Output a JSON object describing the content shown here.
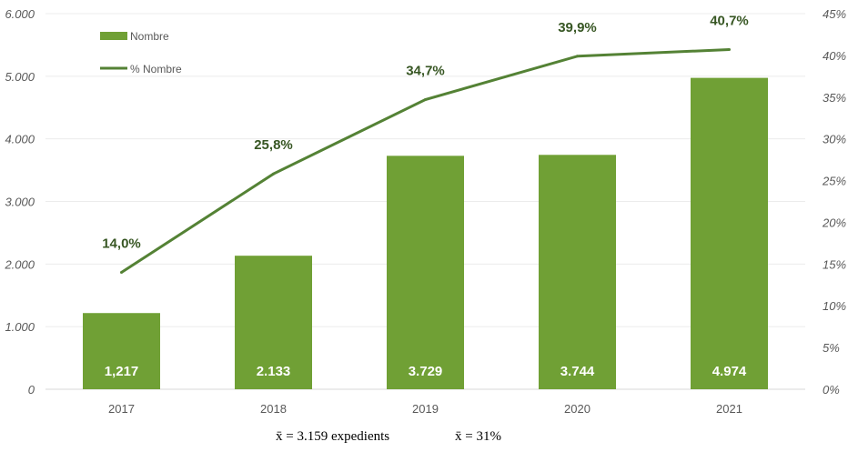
{
  "chart_data": {
    "type": "bar+line",
    "categories": [
      "2017",
      "2018",
      "2019",
      "2020",
      "2021"
    ],
    "series": [
      {
        "name": "Nombre",
        "type": "bar",
        "axis": "left",
        "values": [
          1217,
          2133,
          3729,
          3744,
          4974
        ],
        "labels": [
          "1,217",
          "2.133",
          "3.729",
          "3.744",
          "4.974"
        ],
        "color": "#70A035"
      },
      {
        "name": "% Nombre",
        "type": "line",
        "axis": "right",
        "values": [
          14.0,
          25.8,
          34.7,
          39.9,
          40.7
        ],
        "labels": [
          "14,0%",
          "25,8%",
          "34,7%",
          "39,9%",
          "40,7%"
        ],
        "color": "#548235"
      }
    ],
    "left_axis": {
      "ylim": [
        0,
        6000
      ],
      "ticks": [
        "0",
        "1.000",
        "2.000",
        "3.000",
        "4.000",
        "5.000",
        "6.000"
      ]
    },
    "right_axis": {
      "ylim": [
        0,
        45
      ],
      "ticks": [
        "0%",
        "5%",
        "10%",
        "15%",
        "20%",
        "25%",
        "30%",
        "35%",
        "40%",
        "45%"
      ]
    },
    "grid": true,
    "legend": "top-left",
    "legend_entries": [
      "Nombre",
      "% Nombre"
    ]
  },
  "footer": {
    "mean_count": "x̄ = 3.159 expedients",
    "mean_percent": "x̄ = 31%"
  }
}
